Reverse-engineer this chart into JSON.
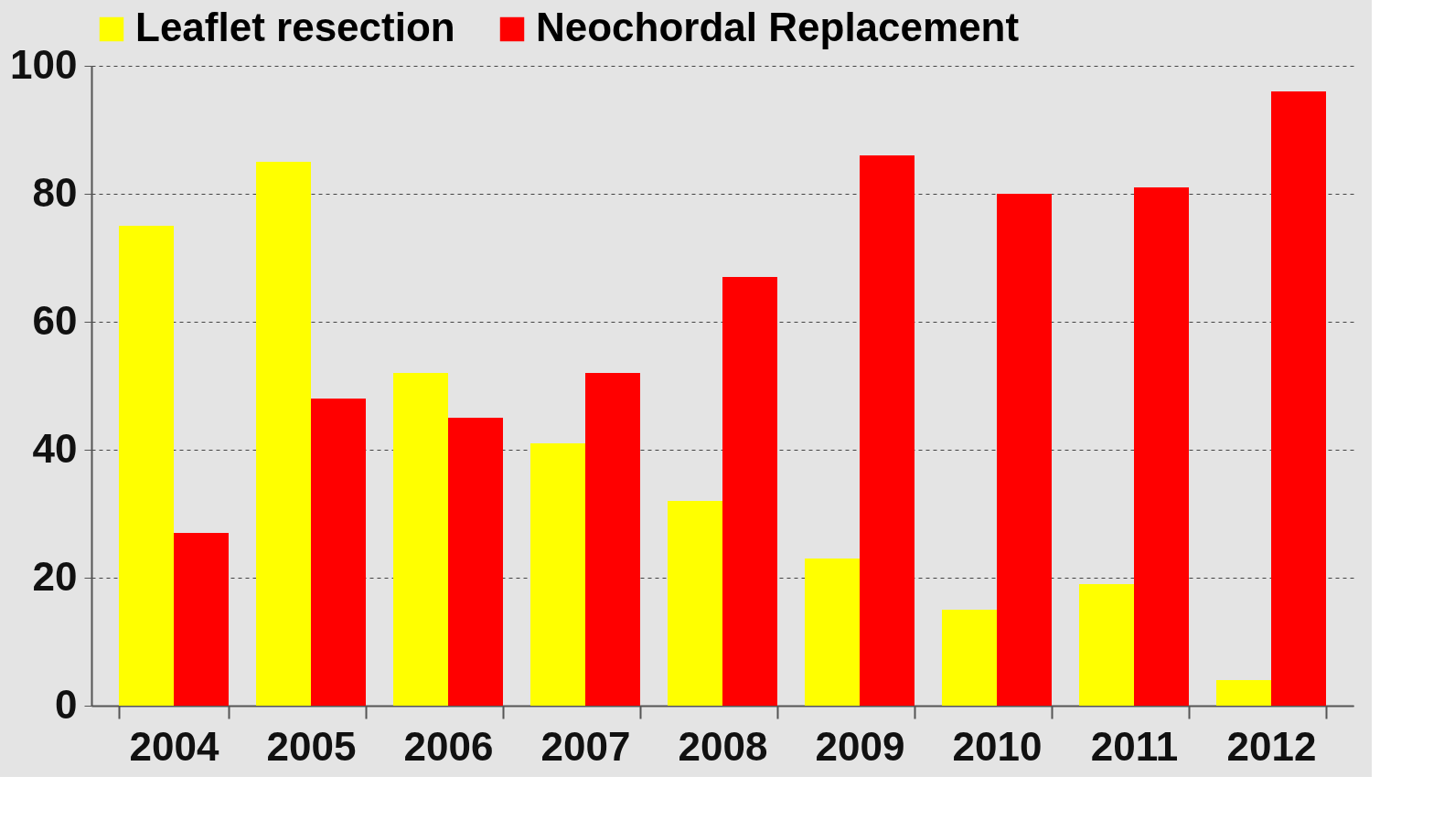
{
  "chart_data": {
    "type": "bar",
    "categories": [
      "2004",
      "2005",
      "2006",
      "2007",
      "2008",
      "2009",
      "2010",
      "2011",
      "2012"
    ],
    "series": [
      {
        "name": "Leaflet resection",
        "color": "#ffff00",
        "values": [
          75,
          85,
          52,
          41,
          32,
          23,
          15,
          19,
          4
        ]
      },
      {
        "name": "Neochordal Replacement",
        "color": "#ff0000",
        "values": [
          27,
          48,
          45,
          52,
          67,
          86,
          80,
          81,
          96
        ]
      }
    ],
    "ylim": [
      0,
      100
    ],
    "yticks": [
      0,
      20,
      40,
      60,
      80,
      100
    ],
    "grid": "y",
    "legend": "top"
  }
}
